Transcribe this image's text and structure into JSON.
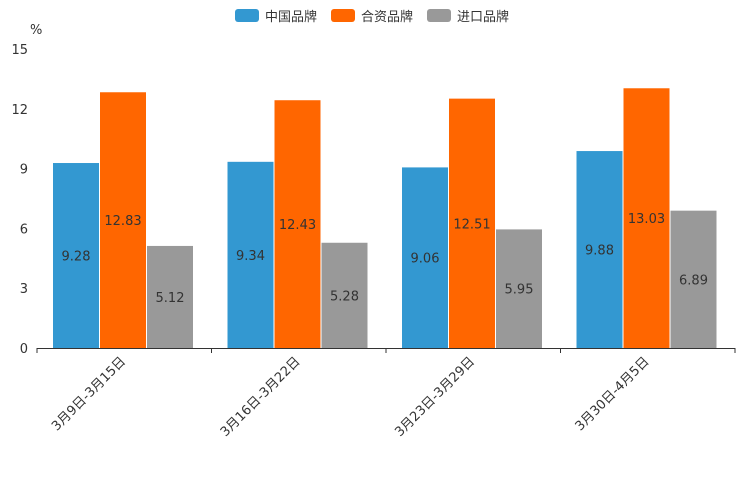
{
  "chart_data": {
    "type": "bar",
    "unit": "%",
    "categories": [
      "3月9日-3月15日",
      "3月16日-3月22日",
      "3月23日-3月29日",
      "3月30日-4月5日"
    ],
    "series": [
      {
        "name": "中国品牌",
        "color": "#3398d1",
        "values": [
          9.28,
          9.34,
          9.06,
          9.88
        ]
      },
      {
        "name": "合资品牌",
        "color": "#ff6600",
        "values": [
          12.83,
          12.43,
          12.51,
          13.03
        ]
      },
      {
        "name": "进口品牌",
        "color": "#999999",
        "values": [
          5.12,
          5.28,
          5.95,
          6.89
        ]
      }
    ],
    "yticks": [
      0,
      3,
      6,
      9,
      12,
      15
    ],
    "ylim": [
      0,
      15
    ],
    "legend_position": "top-center"
  }
}
